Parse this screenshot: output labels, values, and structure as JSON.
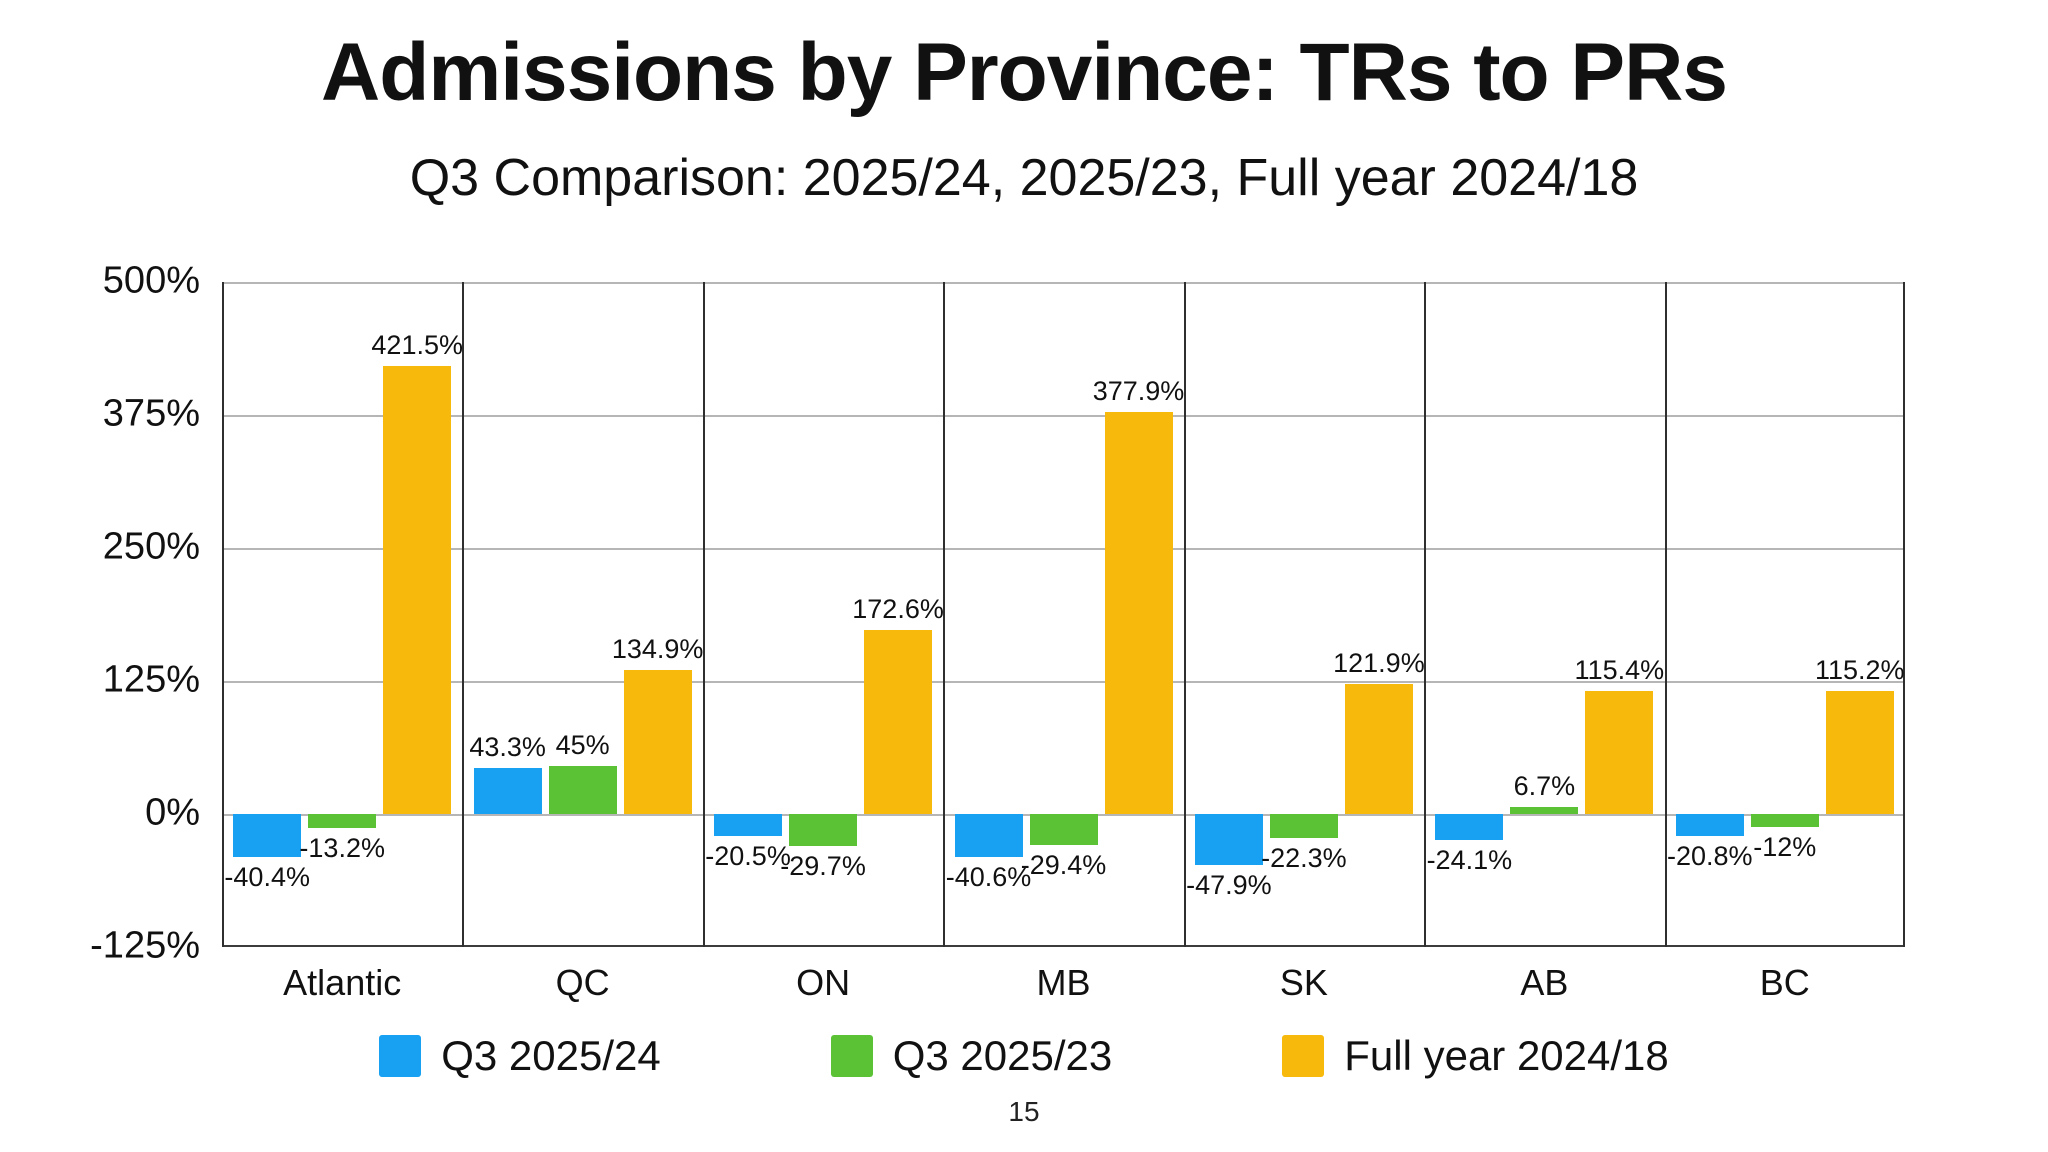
{
  "page": {
    "page_number": "15"
  },
  "chart_data": {
    "type": "bar",
    "title": "Admissions by Province: TRs to PRs",
    "subtitle": "Q3 Comparison: 2025/24, 2025/23, Full year 2024/18",
    "categories": [
      "Atlantic",
      "QC",
      "ON",
      "MB",
      "SK",
      "AB",
      "BC"
    ],
    "series": [
      {
        "name": "Q3 2025/24",
        "color": "#18A0F2",
        "values": [
          -40.4,
          43.3,
          -20.5,
          -40.6,
          -47.9,
          -24.1,
          -20.8
        ],
        "labels": [
          "-40.4%",
          "43.3%",
          "-20.5%",
          "-40.6%",
          "-47.9%",
          "-24.1%",
          "-20.8%"
        ]
      },
      {
        "name": "Q3 2025/23",
        "color": "#5BC236",
        "values": [
          -13.2,
          45,
          -29.7,
          -29.4,
          -22.3,
          6.7,
          -12
        ],
        "labels": [
          "-13.2%",
          "45%",
          "-29.7%",
          "-29.4%",
          "-22.3%",
          "6.7%",
          "-12%"
        ]
      },
      {
        "name": "Full year 2024/18",
        "color": "#F7B90C",
        "values": [
          421.5,
          134.9,
          172.6,
          377.9,
          121.9,
          115.4,
          115.2
        ],
        "labels": [
          "421.5%",
          "134.9%",
          "172.6%",
          "377.9%",
          "121.9%",
          "115.4%",
          "115.2%"
        ]
      }
    ],
    "y_axis": {
      "ticks": [
        {
          "label": "500%",
          "value": 500
        },
        {
          "label": "375%",
          "value": 375
        },
        {
          "label": "250%",
          "value": 250
        },
        {
          "label": "125%",
          "value": 125
        },
        {
          "label": "0%",
          "value": 0
        },
        {
          "label": "-125%",
          "value": -125
        }
      ]
    },
    "ylim": [
      -125,
      500
    ],
    "ytick_step": 125,
    "grid": true,
    "legend_position": "bottom",
    "xlabel": "",
    "ylabel": ""
  }
}
